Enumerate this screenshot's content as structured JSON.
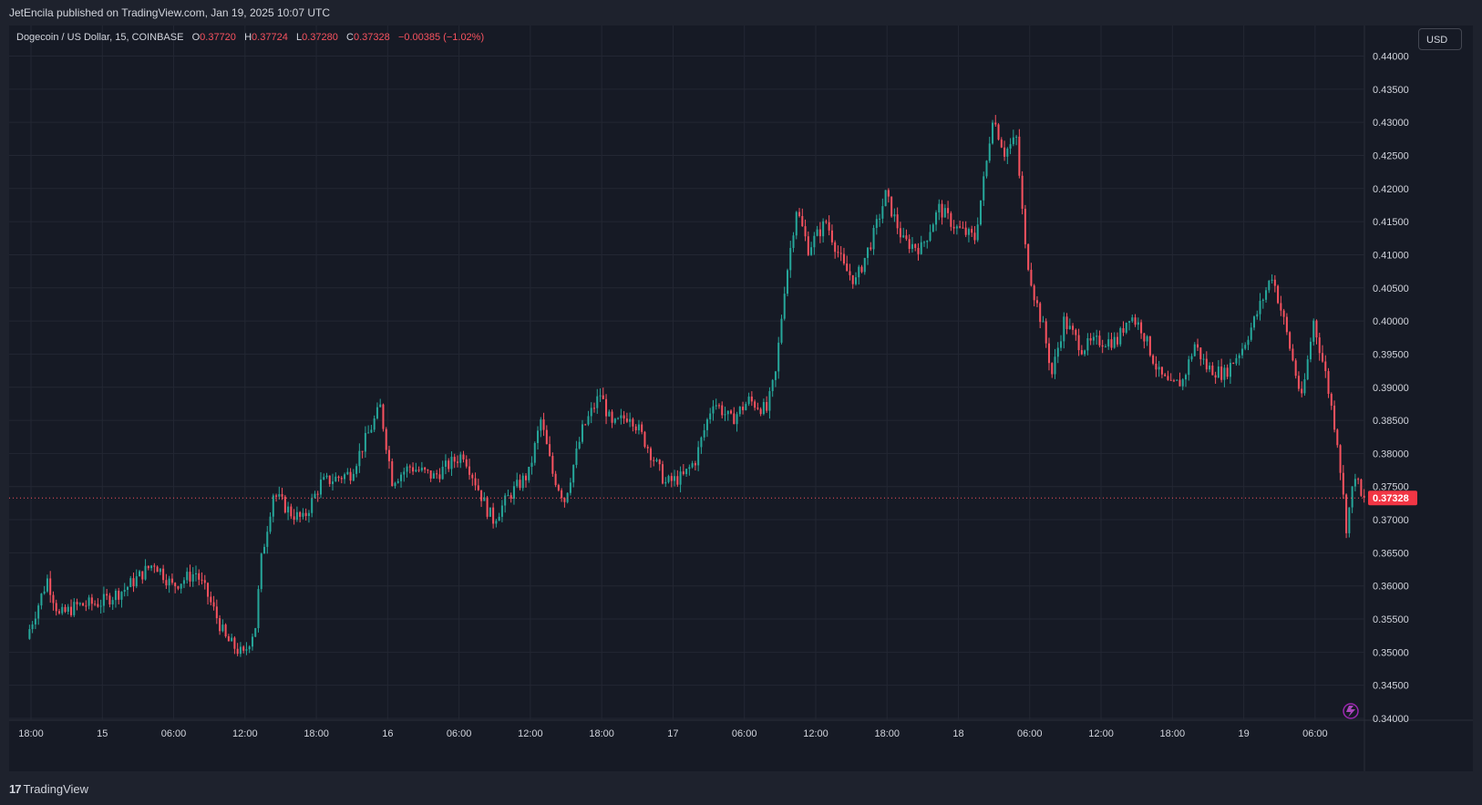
{
  "header": {
    "publisher": "JetEncila published on TradingView.com, Jan 19, 2025 10:07 UTC"
  },
  "legend": {
    "symbol": "Dogecoin / US Dollar, 15, COINBASE",
    "open_label": "O",
    "open": "0.37720",
    "high_label": "H",
    "high": "0.37724",
    "low_label": "L",
    "low": "0.37280",
    "close_label": "C",
    "close": "0.37328",
    "change": "−0.00385 (−1.02%)"
  },
  "currency_button": {
    "label": "USD"
  },
  "footer": {
    "logo_mark": "17",
    "logo_text": "TradingView"
  },
  "colors": {
    "up": "#26a69a",
    "down": "#f7525f",
    "background": "#161a25",
    "grid": "#232733",
    "text": "#d1d4dc",
    "last_price_bg": "#f23645"
  },
  "icons": {
    "replay": "lightning-replay-icon"
  },
  "chart_data": {
    "type": "candlestick",
    "symbol": "Dogecoin / US Dollar",
    "interval": "15",
    "exchange": "COINBASE",
    "y_axis": {
      "ticks": [
        "0.44000",
        "0.43500",
        "0.43000",
        "0.42500",
        "0.42000",
        "0.41500",
        "0.41000",
        "0.40500",
        "0.40000",
        "0.39500",
        "0.39000",
        "0.38500",
        "0.38000",
        "0.37500",
        "0.37000",
        "0.36500",
        "0.36000",
        "0.35500",
        "0.35000",
        "0.34500",
        "0.34000"
      ],
      "range": [
        0.34,
        0.44
      ],
      "side": "right"
    },
    "x_axis": {
      "ticks": [
        "18:00",
        "15",
        "06:00",
        "12:00",
        "18:00",
        "16",
        "06:00",
        "12:00",
        "18:00",
        "17",
        "06:00",
        "12:00",
        "18:00",
        "18",
        "06:00",
        "12:00",
        "18:00",
        "19",
        "06:00"
      ]
    },
    "last_price": "0.37328",
    "grid": true,
    "path_points": [
      {
        "t": "Jan 14 17:45",
        "p": 0.352
      },
      {
        "t": "Jan 14 18:00",
        "p": 0.3535
      },
      {
        "t": "Jan 14 19:30",
        "p": 0.361
      },
      {
        "t": "Jan 14 20:30",
        "p": 0.3555
      },
      {
        "t": "Jan 14 22:00",
        "p": 0.357
      },
      {
        "t": "Jan 15 00:00",
        "p": 0.3575
      },
      {
        "t": "Jan 15 02:00",
        "p": 0.3595
      },
      {
        "t": "Jan 15 04:30",
        "p": 0.3635
      },
      {
        "t": "Jan 15 06:00",
        "p": 0.36
      },
      {
        "t": "Jan 15 08:00",
        "p": 0.362
      },
      {
        "t": "Jan 15 09:00",
        "p": 0.3585
      },
      {
        "t": "Jan 15 10:30",
        "p": 0.352
      },
      {
        "t": "Jan 15 12:00",
        "p": 0.3495
      },
      {
        "t": "Jan 15 13:00",
        "p": 0.354
      },
      {
        "t": "Jan 15 13:30",
        "p": 0.364
      },
      {
        "t": "Jan 15 14:30",
        "p": 0.374
      },
      {
        "t": "Jan 15 16:00",
        "p": 0.371
      },
      {
        "t": "Jan 15 17:00",
        "p": 0.37
      },
      {
        "t": "Jan 15 18:30",
        "p": 0.3755
      },
      {
        "t": "Jan 15 21:00",
        "p": 0.377
      },
      {
        "t": "Jan 15 23:30",
        "p": 0.387
      },
      {
        "t": "Jan 16 00:30",
        "p": 0.376
      },
      {
        "t": "Jan 16 02:00",
        "p": 0.378
      },
      {
        "t": "Jan 16 04:00",
        "p": 0.3765
      },
      {
        "t": "Jan 16 06:30",
        "p": 0.38
      },
      {
        "t": "Jan 16 08:30",
        "p": 0.3715
      },
      {
        "t": "Jan 16 09:00",
        "p": 0.37
      },
      {
        "t": "Jan 16 10:30",
        "p": 0.374
      },
      {
        "t": "Jan 16 12:00",
        "p": 0.377
      },
      {
        "t": "Jan 16 13:00",
        "p": 0.385
      },
      {
        "t": "Jan 16 14:00",
        "p": 0.377
      },
      {
        "t": "Jan 16 15:00",
        "p": 0.373
      },
      {
        "t": "Jan 16 16:30",
        "p": 0.3835
      },
      {
        "t": "Jan 16 18:00",
        "p": 0.389
      },
      {
        "t": "Jan 16 19:00",
        "p": 0.384
      },
      {
        "t": "Jan 16 20:30",
        "p": 0.386
      },
      {
        "t": "Jan 16 22:00",
        "p": 0.381
      },
      {
        "t": "Jan 16 23:30",
        "p": 0.3755
      },
      {
        "t": "Jan 17 01:00",
        "p": 0.3765
      },
      {
        "t": "Jan 17 02:00",
        "p": 0.379
      },
      {
        "t": "Jan 17 03:30",
        "p": 0.388
      },
      {
        "t": "Jan 17 05:00",
        "p": 0.385
      },
      {
        "t": "Jan 17 06:30",
        "p": 0.388
      },
      {
        "t": "Jan 17 08:00",
        "p": 0.3865
      },
      {
        "t": "Jan 17 08:45",
        "p": 0.392
      },
      {
        "t": "Jan 17 09:30",
        "p": 0.405
      },
      {
        "t": "Jan 17 10:30",
        "p": 0.417
      },
      {
        "t": "Jan 17 11:30",
        "p": 0.411
      },
      {
        "t": "Jan 17 13:00",
        "p": 0.415
      },
      {
        "t": "Jan 17 14:30",
        "p": 0.408
      },
      {
        "t": "Jan 17 15:30",
        "p": 0.406
      },
      {
        "t": "Jan 17 17:00",
        "p": 0.413
      },
      {
        "t": "Jan 17 18:00",
        "p": 0.419
      },
      {
        "t": "Jan 17 19:30",
        "p": 0.412
      },
      {
        "t": "Jan 17 21:00",
        "p": 0.411
      },
      {
        "t": "Jan 17 22:30",
        "p": 0.417
      },
      {
        "t": "Jan 18 00:00",
        "p": 0.414
      },
      {
        "t": "Jan 18 01:30",
        "p": 0.4125
      },
      {
        "t": "Jan 18 02:30",
        "p": 0.424
      },
      {
        "t": "Jan 18 03:00",
        "p": 0.431
      },
      {
        "t": "Jan 18 04:00",
        "p": 0.4255
      },
      {
        "t": "Jan 18 05:00",
        "p": 0.4275
      },
      {
        "t": "Jan 18 05:45",
        "p": 0.411
      },
      {
        "t": "Jan 18 06:30",
        "p": 0.404
      },
      {
        "t": "Jan 18 07:15",
        "p": 0.399
      },
      {
        "t": "Jan 18 08:00",
        "p": 0.392
      },
      {
        "t": "Jan 18 09:00",
        "p": 0.4
      },
      {
        "t": "Jan 18 10:30",
        "p": 0.396
      },
      {
        "t": "Jan 18 12:00",
        "p": 0.397
      },
      {
        "t": "Jan 18 13:30",
        "p": 0.397
      },
      {
        "t": "Jan 18 14:30",
        "p": 0.401
      },
      {
        "t": "Jan 18 15:30",
        "p": 0.399
      },
      {
        "t": "Jan 18 17:00",
        "p": 0.392
      },
      {
        "t": "Jan 18 18:00",
        "p": 0.39
      },
      {
        "t": "Jan 18 19:00",
        "p": 0.391
      },
      {
        "t": "Jan 18 20:00",
        "p": 0.3965
      },
      {
        "t": "Jan 18 21:00",
        "p": 0.393
      },
      {
        "t": "Jan 18 22:30",
        "p": 0.392
      },
      {
        "t": "Jan 19 00:00",
        "p": 0.396
      },
      {
        "t": "Jan 19 01:00",
        "p": 0.4
      },
      {
        "t": "Jan 19 02:30",
        "p": 0.407
      },
      {
        "t": "Jan 19 03:30",
        "p": 0.4
      },
      {
        "t": "Jan 19 05:00",
        "p": 0.388
      },
      {
        "t": "Jan 19 06:00",
        "p": 0.4
      },
      {
        "t": "Jan 19 07:00",
        "p": 0.392
      },
      {
        "t": "Jan 19 08:00",
        "p": 0.382
      },
      {
        "t": "Jan 19 08:45",
        "p": 0.369
      },
      {
        "t": "Jan 19 09:30",
        "p": 0.377
      },
      {
        "t": "Jan 19 10:00",
        "p": 0.3733
      }
    ]
  }
}
